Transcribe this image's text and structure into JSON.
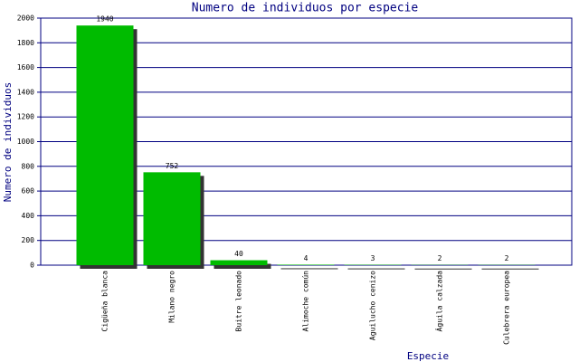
{
  "chart_data": {
    "type": "bar",
    "title": "Numero de individuos por especie",
    "x_label": "Especie",
    "y_label": "Numero de individuos",
    "categories": [
      "Cigüeña blanca",
      "Milano negro",
      "Buitre leonado",
      "Alimoche común",
      "Aguilucho cenizo",
      "Águila calzada",
      "Culebrera europea"
    ],
    "values": [
      1940,
      752,
      40,
      4,
      3,
      2,
      2
    ],
    "color": "#00bb00",
    "ylim": [
      0,
      2000
    ],
    "yticks": [
      0,
      200,
      400,
      600,
      800,
      1000,
      1200,
      1400,
      1600,
      1800,
      2000
    ],
    "grid": true
  }
}
